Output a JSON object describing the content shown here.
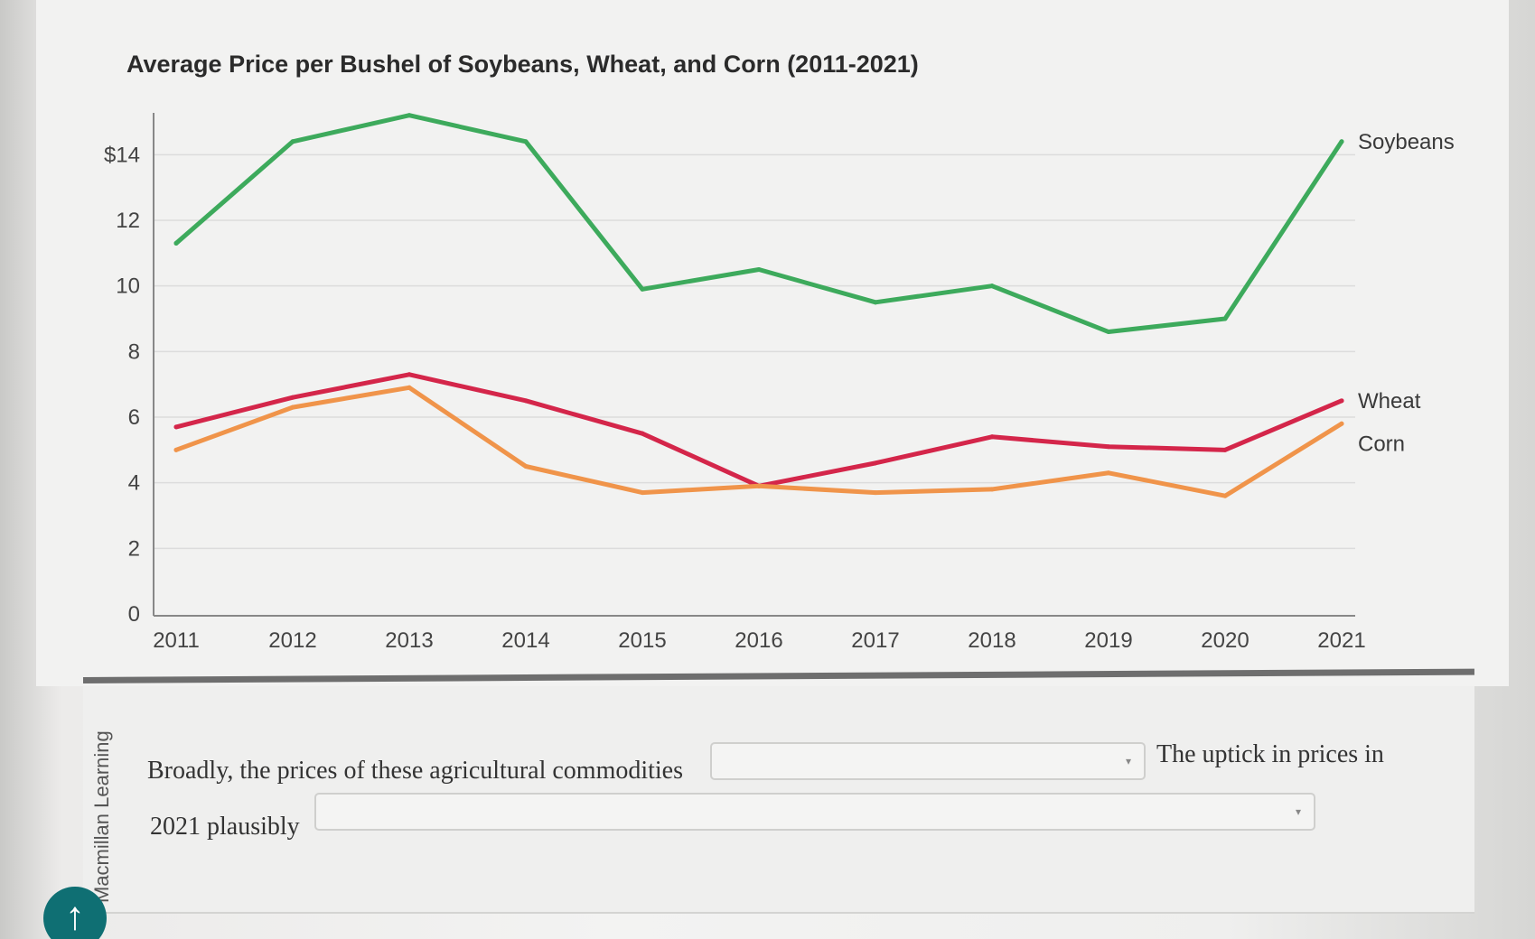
{
  "chart_data": {
    "type": "line",
    "title": "Average Price per Bushel of Soybeans, Wheat, and Corn (2011-2021)",
    "x": [
      "2011",
      "2012",
      "2013",
      "2014",
      "2015",
      "2016",
      "2017",
      "2018",
      "2019",
      "2020",
      "2021"
    ],
    "y_ticks": [
      "0",
      "2",
      "4",
      "6",
      "8",
      "10",
      "12",
      "$14"
    ],
    "ylim": [
      0,
      15
    ],
    "grid": true,
    "series": [
      {
        "name": "Soybeans",
        "color": "#3daa5c",
        "values": [
          11.3,
          14.4,
          15.2,
          14.4,
          9.9,
          10.5,
          9.5,
          10.0,
          8.6,
          9.0,
          14.4
        ]
      },
      {
        "name": "Wheat",
        "color": "#d4264a",
        "values": [
          5.7,
          6.6,
          7.3,
          6.5,
          5.5,
          3.9,
          4.6,
          5.4,
          5.1,
          5.0,
          6.5
        ]
      },
      {
        "name": "Corn",
        "color": "#f0944a",
        "values": [
          5.0,
          6.3,
          6.9,
          4.5,
          3.7,
          3.9,
          3.7,
          3.8,
          4.3,
          3.6,
          5.8
        ]
      }
    ]
  },
  "question": {
    "sentence_1": "Broadly, the prices of these agricultural commodities",
    "sentence_2": "The uptick in prices in",
    "sentence_3": "2021 plausibly",
    "dropdown_1_value": "",
    "dropdown_2_value": ""
  },
  "vendor_label": "Macmillan Learning",
  "colors": {
    "scroll_button": "#0f6f73"
  },
  "icons": {
    "scroll_top": "arrow-up-icon",
    "dropdown_caret": "chevron-down-icon"
  },
  "glyphs": {
    "arrow_up": "↑",
    "caret": "▾"
  }
}
